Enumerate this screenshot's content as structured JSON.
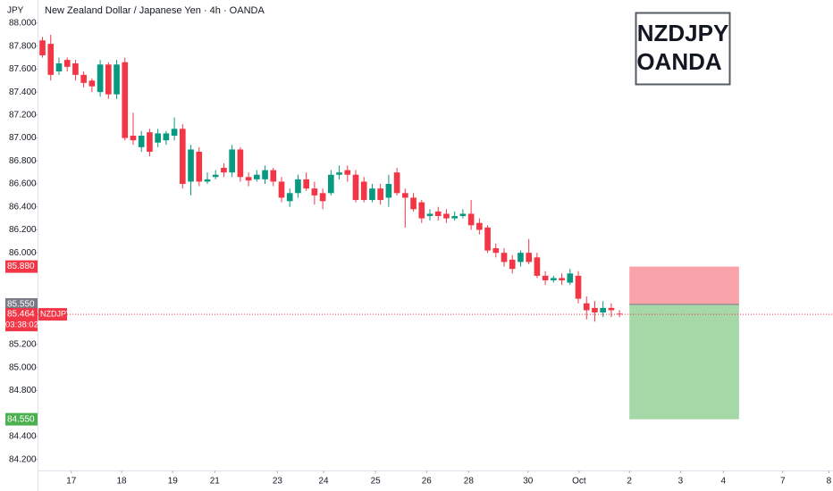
{
  "chart_data": {
    "type": "candlestick",
    "title": "New Zealand Dollar / Japanese Yen · 4h · OANDA",
    "currency": "JPY",
    "watermark": [
      "NZDJPY",
      "OANDA"
    ],
    "up_color": "#089981",
    "down_color": "#f23645",
    "open": [
      87.85,
      87.82,
      87.58,
      87.68,
      87.65,
      87.55,
      87.5,
      87.4,
      87.64,
      87.38,
      87.66,
      87.02,
      86.92,
      87.05,
      86.96,
      86.98,
      87.02,
      87.08,
      86.62,
      86.88,
      86.62,
      86.66,
      86.74,
      86.7,
      86.9,
      86.66,
      86.64,
      86.64,
      86.72,
      86.62,
      86.45,
      86.52,
      86.64,
      86.56,
      86.52,
      86.52,
      86.68,
      86.72,
      86.68,
      86.62,
      86.46,
      86.56,
      86.48,
      86.7,
      86.52,
      86.48,
      86.44,
      86.32,
      86.36,
      86.34,
      86.3,
      86.32,
      86.34,
      86.26,
      86.22,
      86.04,
      86.0,
      85.94,
      85.92,
      86.0,
      85.96,
      85.8,
      85.76,
      85.78,
      85.74,
      85.8,
      85.56,
      85.52,
      85.48,
      85.52,
      85.47
    ],
    "high": [
      87.88,
      87.9,
      87.7,
      87.7,
      87.68,
      87.58,
      87.52,
      87.68,
      87.66,
      87.68,
      87.7,
      87.22,
      87.06,
      87.08,
      87.08,
      87.06,
      87.18,
      87.12,
      86.94,
      86.92,
      86.7,
      86.72,
      86.78,
      86.94,
      86.92,
      86.7,
      86.72,
      86.76,
      86.74,
      86.66,
      86.56,
      86.68,
      86.7,
      86.62,
      86.56,
      86.72,
      86.76,
      86.76,
      86.72,
      86.66,
      86.6,
      86.6,
      86.68,
      86.74,
      86.56,
      86.52,
      86.46,
      86.38,
      86.4,
      86.38,
      86.36,
      86.38,
      86.46,
      86.3,
      86.24,
      86.08,
      86.04,
      85.98,
      86.02,
      86.12,
      86.0,
      85.84,
      85.8,
      85.82,
      85.86,
      85.84,
      85.62,
      85.58,
      85.58,
      85.56,
      85.5
    ],
    "low": [
      87.7,
      87.5,
      87.55,
      87.58,
      87.5,
      87.44,
      87.4,
      87.36,
      87.34,
      87.34,
      86.98,
      86.94,
      86.88,
      86.84,
      86.92,
      86.94,
      86.98,
      86.56,
      86.5,
      86.58,
      86.6,
      86.64,
      86.66,
      86.66,
      86.62,
      86.58,
      86.62,
      86.6,
      86.58,
      86.44,
      86.4,
      86.48,
      86.54,
      86.42,
      86.38,
      86.5,
      86.64,
      86.62,
      86.44,
      86.44,
      86.44,
      86.42,
      86.4,
      86.5,
      86.22,
      86.36,
      86.26,
      86.28,
      86.28,
      86.26,
      86.28,
      86.3,
      86.2,
      86.16,
      86.0,
      85.96,
      85.88,
      85.82,
      85.88,
      85.9,
      85.78,
      85.72,
      85.74,
      85.72,
      85.72,
      85.56,
      85.42,
      85.4,
      85.44,
      85.44,
      85.44
    ],
    "close": [
      87.72,
      87.55,
      87.65,
      87.62,
      87.55,
      87.48,
      87.45,
      87.64,
      87.38,
      87.64,
      87.0,
      86.98,
      87.02,
      86.88,
      87.04,
      87.04,
      87.08,
      86.6,
      86.9,
      86.62,
      86.64,
      86.68,
      86.7,
      86.9,
      86.66,
      86.63,
      86.68,
      86.72,
      86.62,
      86.48,
      86.52,
      86.64,
      86.56,
      86.5,
      86.45,
      86.68,
      86.7,
      86.68,
      86.46,
      86.46,
      86.56,
      86.46,
      86.6,
      86.52,
      86.48,
      86.38,
      86.3,
      86.34,
      86.32,
      86.3,
      86.32,
      86.34,
      86.24,
      86.2,
      86.02,
      86.0,
      85.92,
      85.86,
      86.0,
      85.92,
      85.8,
      85.76,
      85.78,
      85.76,
      85.82,
      85.6,
      85.5,
      85.48,
      85.52,
      85.5,
      85.464
    ],
    "xlim": [
      -0.6,
      95.9
    ],
    "ylim": [
      84.104,
      88.202
    ],
    "xticks": [
      {
        "value": 3.5,
        "label": "17"
      },
      {
        "value": 9.6,
        "label": "18"
      },
      {
        "value": 15.8,
        "label": "19"
      },
      {
        "value": 20.9,
        "label": "21"
      },
      {
        "value": 28.5,
        "label": "23"
      },
      {
        "value": 34.1,
        "label": "24"
      },
      {
        "value": 40.4,
        "label": "25"
      },
      {
        "value": 46.6,
        "label": "26"
      },
      {
        "value": 51.7,
        "label": "28"
      },
      {
        "value": 58.9,
        "label": "30"
      },
      {
        "value": 65.1,
        "label": "Oct"
      },
      {
        "value": 71.2,
        "label": "2"
      },
      {
        "value": 77.4,
        "label": "3"
      },
      {
        "value": 82.6,
        "label": "4"
      },
      {
        "value": 89.8,
        "label": "7"
      },
      {
        "value": 95.4,
        "label": "8"
      }
    ],
    "yticks": [
      {
        "value": 88,
        "label": "88.000"
      },
      {
        "value": 87.8,
        "label": "87.800"
      },
      {
        "value": 87.6,
        "label": "87.600"
      },
      {
        "value": 87.4,
        "label": "87.400"
      },
      {
        "value": 87.2,
        "label": "87.200"
      },
      {
        "value": 87,
        "label": "87.000"
      },
      {
        "value": 86.8,
        "label": "86.800"
      },
      {
        "value": 86.6,
        "label": "86.600"
      },
      {
        "value": 86.4,
        "label": "86.400"
      },
      {
        "value": 86.2,
        "label": "86.200"
      },
      {
        "value": 86,
        "label": "86.000"
      },
      {
        "value": 85.2,
        "label": "85.200"
      },
      {
        "value": 85,
        "label": "85.000"
      },
      {
        "value": 84.8,
        "label": "84.800"
      },
      {
        "value": 84.4,
        "label": "84.400"
      },
      {
        "value": 84.2,
        "label": "84.200"
      }
    ],
    "position": {
      "x_start": 71.2,
      "x_end": 84.5,
      "entry": {
        "value": 85.55,
        "label": "85.550"
      },
      "stop": {
        "value": 85.88,
        "label": "85.880"
      },
      "target": {
        "value": 84.55,
        "label": "84.550"
      }
    },
    "last_price": {
      "value": 85.464,
      "label": "85.464",
      "symbol": "NZDJPY",
      "countdown": "03:38:02"
    }
  }
}
